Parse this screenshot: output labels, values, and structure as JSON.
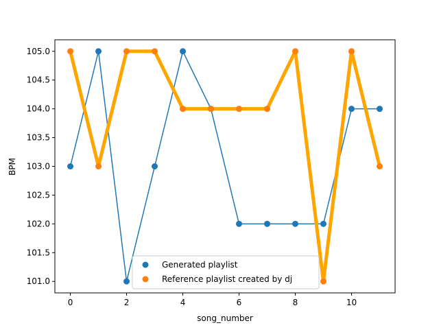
{
  "chart_data": {
    "type": "line",
    "title": "",
    "xlabel": "song_number",
    "ylabel": "BPM",
    "xlim": [
      -0.55,
      11.55
    ],
    "ylim": [
      100.8,
      105.2
    ],
    "x_ticks": [
      0,
      2,
      4,
      6,
      8,
      10
    ],
    "x_tick_labels": [
      "0",
      "2",
      "4",
      "6",
      "8",
      "10"
    ],
    "y_ticks": [
      101.0,
      101.5,
      102.0,
      102.5,
      103.0,
      103.5,
      104.0,
      104.5,
      105.0
    ],
    "y_tick_labels": [
      "101.0",
      "101.5",
      "102.0",
      "102.5",
      "103.0",
      "103.5",
      "104.0",
      "104.5",
      "105.0"
    ],
    "grid": false,
    "legend_position": "lower-center",
    "x": [
      0,
      1,
      2,
      3,
      4,
      5,
      6,
      7,
      8,
      9,
      10,
      11
    ],
    "series": [
      {
        "name": "Generated playlist",
        "color": "#1f77b4",
        "line_style": "thin-line-with-markers",
        "values": [
          103,
          105,
          101,
          103,
          105,
          104,
          102,
          102,
          102,
          102,
          104,
          104
        ]
      },
      {
        "name": "Reference playlist created by dj",
        "color": "#ff7f0e",
        "line_color": "#ffa500",
        "line_style": "thick-line-with-markers",
        "values": [
          105,
          103,
          105,
          105,
          104,
          104,
          104,
          104,
          105,
          101,
          105,
          103
        ]
      }
    ]
  }
}
